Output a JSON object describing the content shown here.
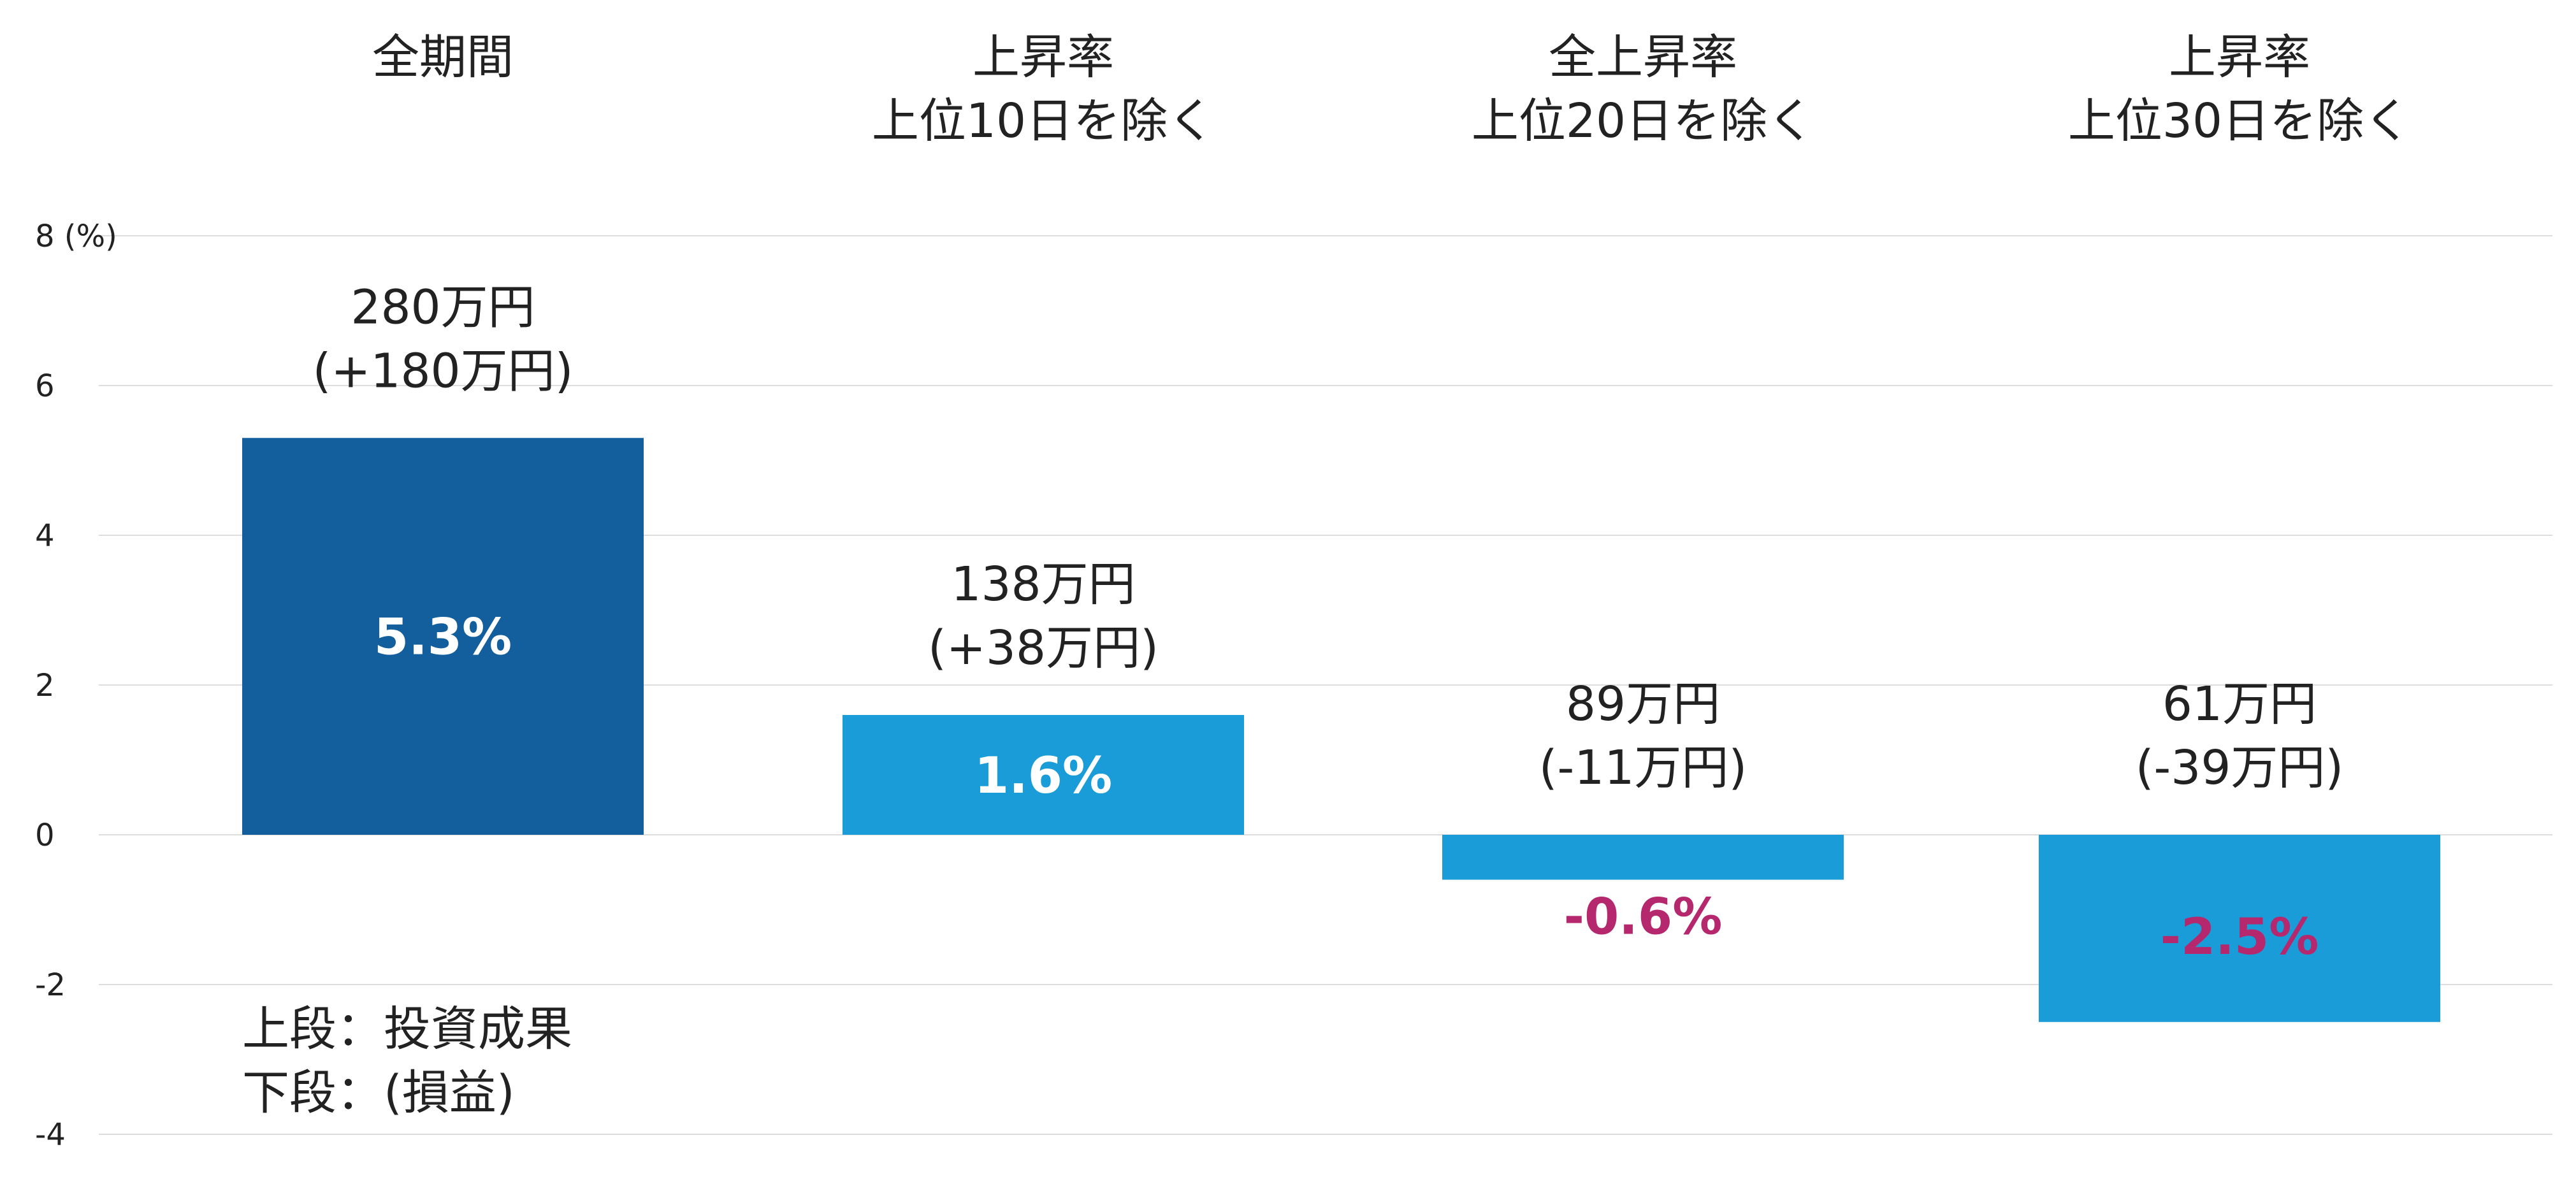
{
  "chart_data": {
    "type": "bar",
    "ylabel_unit": "(%)",
    "ylim": [
      -4,
      8
    ],
    "yticks": [
      -4,
      -2,
      0,
      2,
      4,
      6,
      8
    ],
    "grid": true,
    "legend": "none",
    "categories": [
      "全期間",
      "上昇率\n上位10日を除く",
      "全上昇率\n上位20日を除く",
      "上昇率\n上位30日を除く"
    ],
    "values": [
      5.3,
      1.6,
      -0.6,
      -2.5
    ],
    "value_labels": [
      "5.3%",
      "1.6%",
      "-0.6%",
      "-2.5%"
    ],
    "result_labels": [
      "280万円",
      "138万円",
      "89万円",
      "61万円"
    ],
    "gain_labels": [
      "(+180万円)",
      "(+38万円)",
      "(-11万円)",
      "(-39万円)"
    ],
    "annotation": [
      "上段：投資成果",
      "下段：(損益)"
    ],
    "colors": {
      "bar_first": "#135f9e",
      "bar_rest": "#1a9cd9",
      "positive_label": "#ffffff",
      "negative_label": "#b5286e",
      "grid": "#dddddd",
      "text": "#222222"
    }
  }
}
